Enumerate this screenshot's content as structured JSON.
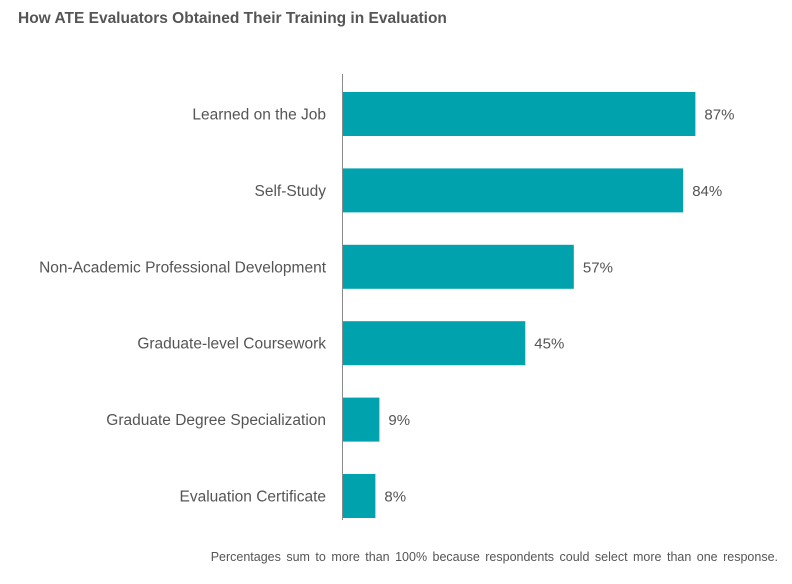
{
  "chart_data": {
    "type": "bar",
    "orientation": "horizontal",
    "title": "How ATE Evaluators Obtained Their Training in Evaluation",
    "categories": [
      "Learned on the Job",
      "Self-Study",
      "Non-Academic Professional Development",
      "Graduate-level Coursework",
      "Graduate Degree Specialization",
      "Evaluation Certificate"
    ],
    "values": [
      87,
      84,
      57,
      45,
      9,
      8
    ],
    "value_labels": [
      "87%",
      "84%",
      "57%",
      "45%",
      "9%",
      "8%"
    ],
    "xlim": [
      0,
      100
    ],
    "grid": false,
    "bar_color": "#00A3AD",
    "footnote": "Percentages  sum to more than 100% because  respondents  could select more than one response."
  }
}
